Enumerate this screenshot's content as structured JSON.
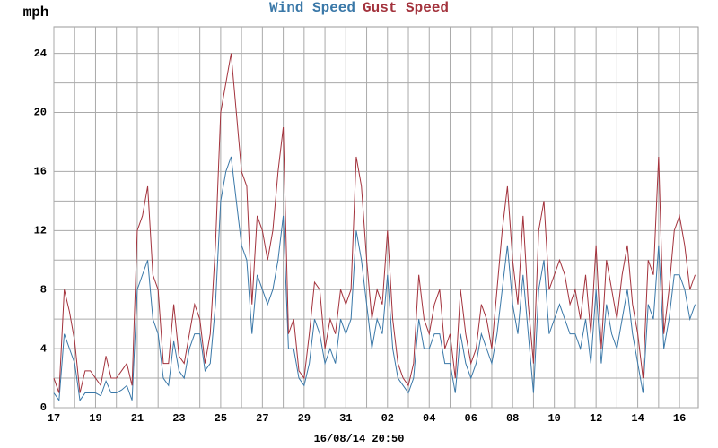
{
  "chart_data": {
    "type": "line",
    "ylabel": "mph",
    "annotation": "16/08/14 20:50",
    "x": [
      0,
      0.25,
      0.5,
      0.75,
      1,
      1.25,
      1.5,
      1.75,
      2,
      2.25,
      2.5,
      2.75,
      3,
      3.25,
      3.5,
      3.75,
      4,
      4.25,
      4.5,
      4.75,
      5,
      5.25,
      5.5,
      5.75,
      6,
      6.25,
      6.5,
      6.75,
      7,
      7.25,
      7.5,
      7.75,
      8,
      8.25,
      8.5,
      8.75,
      9,
      9.25,
      9.5,
      9.75,
      10,
      10.25,
      10.5,
      10.75,
      11,
      11.25,
      11.5,
      11.75,
      12,
      12.25,
      12.5,
      12.75,
      13,
      13.25,
      13.5,
      13.75,
      14,
      14.25,
      14.5,
      14.75,
      15,
      15.25,
      15.5,
      15.75,
      16,
      16.25,
      16.5,
      16.75,
      17,
      17.25,
      17.5,
      17.75,
      18,
      18.25,
      18.5,
      18.75,
      19,
      19.25,
      19.5,
      19.75,
      20,
      20.25,
      20.5,
      20.75,
      21,
      21.25,
      21.5,
      21.75,
      22,
      22.25,
      22.5,
      22.75,
      23,
      23.25,
      23.5,
      23.75,
      24,
      24.25,
      24.5,
      24.75,
      25,
      25.25,
      25.5,
      25.75,
      26,
      26.25,
      26.5,
      26.75,
      27,
      27.25,
      27.5,
      27.75,
      28,
      28.25,
      28.5,
      28.75,
      29,
      29.25,
      29.5,
      29.75,
      30,
      30.25,
      30.5,
      30.75
    ],
    "series": [
      {
        "name": "Wind Speed",
        "color": "#3a78a8",
        "values": [
          1,
          0.5,
          5,
          4,
          3,
          0.5,
          1,
          1,
          1,
          0.8,
          1.8,
          1,
          1,
          1.2,
          1.5,
          0.5,
          8,
          9,
          10,
          6,
          5,
          2,
          1.5,
          4.5,
          2.5,
          2,
          4,
          5,
          5,
          2.5,
          3,
          7,
          14,
          16,
          17,
          14,
          11,
          10,
          5,
          9,
          8,
          7,
          8,
          10,
          13,
          4,
          4,
          2,
          1.5,
          3,
          6,
          5,
          3,
          4,
          3,
          6,
          5,
          6,
          12,
          10,
          7,
          4,
          6,
          5,
          9,
          4,
          2,
          1.5,
          1,
          2,
          6,
          4,
          4,
          5,
          5,
          3,
          3,
          1,
          5,
          3,
          2,
          3,
          5,
          4,
          3,
          5,
          8,
          11,
          7,
          5,
          9,
          5,
          1,
          8,
          10,
          5,
          6,
          7,
          6,
          5,
          5,
          4,
          6,
          3,
          8,
          3,
          7,
          5,
          4,
          6,
          8,
          5,
          3,
          1,
          7,
          6,
          11,
          4,
          6,
          9,
          9,
          8,
          6,
          7
        ]
      },
      {
        "name": "Gust Speed",
        "color": "#a3323c",
        "values": [
          2,
          1,
          8,
          6.5,
          4.5,
          1,
          2.5,
          2.5,
          2,
          1.5,
          3.5,
          2,
          2,
          2.5,
          3,
          1.5,
          12,
          13,
          15,
          9,
          8,
          3,
          3,
          7,
          3.5,
          3,
          5,
          7,
          6,
          3,
          5,
          11,
          20,
          22,
          24,
          20,
          16,
          15,
          7,
          13,
          12,
          10,
          12,
          16,
          19,
          5,
          6,
          2.5,
          2,
          5,
          8.5,
          8,
          4,
          6,
          5,
          8,
          7,
          8,
          17,
          15,
          10,
          6,
          8,
          7,
          12,
          6,
          3,
          2,
          1.5,
          3,
          9,
          6,
          5,
          7,
          8,
          4,
          5,
          2,
          8,
          5,
          3,
          4,
          7,
          6,
          4,
          8,
          12,
          15,
          10,
          7,
          13,
          7,
          3,
          12,
          14,
          8,
          9,
          10,
          9,
          7,
          8,
          6,
          9,
          5,
          11,
          4,
          10,
          8,
          6,
          9,
          11,
          7,
          5,
          2,
          10,
          9,
          17,
          5,
          8,
          12,
          13,
          11,
          8,
          9
        ]
      }
    ],
    "xlim": [
      0,
      30.9
    ],
    "xticks": [
      {
        "value": 0,
        "label": "17"
      },
      {
        "value": 2,
        "label": "19"
      },
      {
        "value": 4,
        "label": "21"
      },
      {
        "value": 6,
        "label": "23"
      },
      {
        "value": 8,
        "label": "25"
      },
      {
        "value": 10,
        "label": "27"
      },
      {
        "value": 12,
        "label": "29"
      },
      {
        "value": 14,
        "label": "31"
      },
      {
        "value": 16,
        "label": "02"
      },
      {
        "value": 18,
        "label": "04"
      },
      {
        "value": 20,
        "label": "06"
      },
      {
        "value": 22,
        "label": "08"
      },
      {
        "value": 24,
        "label": "10"
      },
      {
        "value": 26,
        "label": "12"
      },
      {
        "value": 28,
        "label": "14"
      },
      {
        "value": 30,
        "label": "16"
      }
    ],
    "ylim": [
      0,
      25.8
    ],
    "yticks": [
      0,
      4,
      8,
      12,
      16,
      20,
      24
    ],
    "grid": true
  }
}
